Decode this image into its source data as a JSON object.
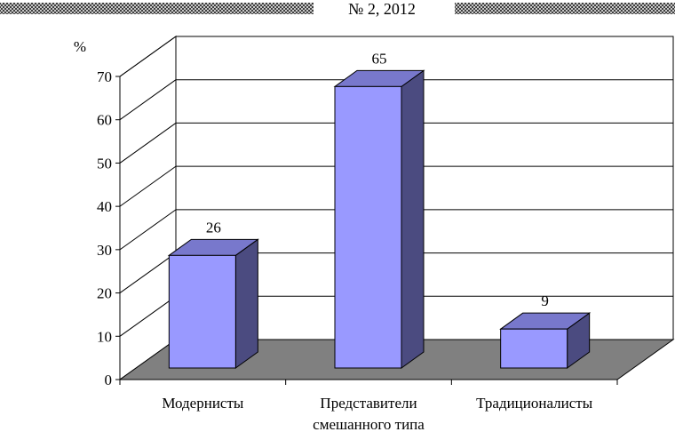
{
  "header": {
    "text": "№ 2, 2012"
  },
  "chart_data": {
    "type": "bar",
    "ylabel": "%",
    "ylim": [
      0,
      70
    ],
    "yticks": [
      0,
      10,
      20,
      30,
      40,
      50,
      60,
      70
    ],
    "categories": [
      [
        "Модернисты"
      ],
      [
        "Представители",
        "смешанного типа"
      ],
      [
        "Традиционалисты"
      ]
    ],
    "values": [
      26,
      65,
      9
    ],
    "data_labels": [
      "26",
      "65",
      "9"
    ],
    "grid": true,
    "style": "3d-column",
    "colors": {
      "bar_front": "#9999ff",
      "bar_top": "#7878cc",
      "bar_side": "#4b4b80",
      "floor": "#808080",
      "gridline": "#000000"
    }
  }
}
